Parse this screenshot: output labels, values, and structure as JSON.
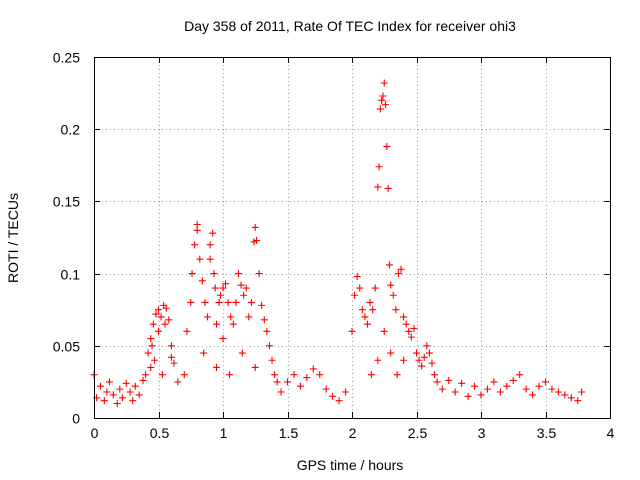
{
  "chart_data": {
    "type": "scatter",
    "title": "Day 358 of 2011, Rate Of TEC Index for receiver ohi3",
    "xlabel": "GPS time / hours",
    "ylabel": "ROTI / TECUs",
    "xlim": [
      0,
      4
    ],
    "ylim": [
      0,
      0.25
    ],
    "xticks": [
      0,
      0.5,
      1,
      1.5,
      2,
      2.5,
      3,
      3.5,
      4
    ],
    "xtick_labels": [
      "0",
      "0.5",
      "1",
      "1.5",
      "2",
      "2.5",
      "3",
      "3.5",
      "4"
    ],
    "yticks": [
      0,
      0.05,
      0.1,
      0.15,
      0.2,
      0.25
    ],
    "ytick_labels": [
      "0",
      "0.05",
      "0.1",
      "0.15",
      "0.2",
      "0.25"
    ],
    "grid": true,
    "marker": "plus",
    "color": "#ff0000",
    "series": [
      {
        "name": "ROTI",
        "points": [
          [
            0.0,
            0.03
          ],
          [
            0.02,
            0.014
          ],
          [
            0.05,
            0.022
          ],
          [
            0.08,
            0.012
          ],
          [
            0.1,
            0.018
          ],
          [
            0.12,
            0.025
          ],
          [
            0.15,
            0.016
          ],
          [
            0.18,
            0.01
          ],
          [
            0.2,
            0.02
          ],
          [
            0.22,
            0.014
          ],
          [
            0.25,
            0.024
          ],
          [
            0.28,
            0.018
          ],
          [
            0.3,
            0.012
          ],
          [
            0.32,
            0.022
          ],
          [
            0.35,
            0.016
          ],
          [
            0.38,
            0.026
          ],
          [
            0.4,
            0.03
          ],
          [
            0.42,
            0.045
          ],
          [
            0.44,
            0.055
          ],
          [
            0.46,
            0.065
          ],
          [
            0.48,
            0.072
          ],
          [
            0.5,
            0.075
          ],
          [
            0.52,
            0.07
          ],
          [
            0.54,
            0.078
          ],
          [
            0.56,
            0.076
          ],
          [
            0.58,
            0.068
          ],
          [
            0.6,
            0.05
          ],
          [
            0.62,
            0.038
          ],
          [
            0.45,
            0.05
          ],
          [
            0.5,
            0.06
          ],
          [
            0.55,
            0.065
          ],
          [
            0.47,
            0.04
          ],
          [
            0.53,
            0.03
          ],
          [
            0.44,
            0.035
          ],
          [
            0.6,
            0.042
          ],
          [
            0.65,
            0.025
          ],
          [
            0.7,
            0.03
          ],
          [
            0.72,
            0.06
          ],
          [
            0.75,
            0.08
          ],
          [
            0.76,
            0.1
          ],
          [
            0.78,
            0.12
          ],
          [
            0.8,
            0.13
          ],
          [
            0.8,
            0.134
          ],
          [
            0.82,
            0.11
          ],
          [
            0.84,
            0.095
          ],
          [
            0.86,
            0.08
          ],
          [
            0.88,
            0.07
          ],
          [
            0.9,
            0.12
          ],
          [
            0.9,
            0.11
          ],
          [
            0.92,
            0.128
          ],
          [
            0.93,
            0.1
          ],
          [
            0.94,
            0.09
          ],
          [
            0.95,
            0.065
          ],
          [
            0.97,
            0.08
          ],
          [
            0.98,
            0.085
          ],
          [
            1.0,
            0.09
          ],
          [
            1.02,
            0.093
          ],
          [
            1.04,
            0.08
          ],
          [
            1.06,
            0.07
          ],
          [
            1.08,
            0.065
          ],
          [
            1.1,
            0.08
          ],
          [
            1.12,
            0.1
          ],
          [
            1.14,
            0.092
          ],
          [
            1.16,
            0.085
          ],
          [
            1.18,
            0.09
          ],
          [
            1.2,
            0.07
          ],
          [
            1.22,
            0.08
          ],
          [
            1.24,
            0.122
          ],
          [
            1.25,
            0.132
          ],
          [
            1.26,
            0.123
          ],
          [
            1.28,
            0.1
          ],
          [
            1.3,
            0.078
          ],
          [
            1.32,
            0.068
          ],
          [
            1.34,
            0.06
          ],
          [
            1.36,
            0.05
          ],
          [
            1.38,
            0.04
          ],
          [
            1.4,
            0.03
          ],
          [
            1.42,
            0.025
          ],
          [
            0.85,
            0.045
          ],
          [
            1.0,
            0.055
          ],
          [
            1.05,
            0.03
          ],
          [
            1.15,
            0.045
          ],
          [
            1.25,
            0.035
          ],
          [
            0.95,
            0.035
          ],
          [
            1.45,
            0.018
          ],
          [
            1.5,
            0.025
          ],
          [
            1.55,
            0.03
          ],
          [
            1.6,
            0.022
          ],
          [
            1.65,
            0.028
          ],
          [
            1.7,
            0.034
          ],
          [
            1.75,
            0.03
          ],
          [
            1.8,
            0.02
          ],
          [
            1.85,
            0.015
          ],
          [
            1.9,
            0.012
          ],
          [
            1.95,
            0.018
          ],
          [
            2.0,
            0.06
          ],
          [
            2.02,
            0.085
          ],
          [
            2.04,
            0.098
          ],
          [
            2.06,
            0.09
          ],
          [
            2.08,
            0.075
          ],
          [
            2.1,
            0.07
          ],
          [
            2.12,
            0.065
          ],
          [
            2.14,
            0.08
          ],
          [
            2.16,
            0.075
          ],
          [
            2.18,
            0.09
          ],
          [
            2.2,
            0.16
          ],
          [
            2.21,
            0.174
          ],
          [
            2.22,
            0.214
          ],
          [
            2.23,
            0.22
          ],
          [
            2.24,
            0.223
          ],
          [
            2.25,
            0.232
          ],
          [
            2.26,
            0.217
          ],
          [
            2.27,
            0.188
          ],
          [
            2.28,
            0.159
          ],
          [
            2.29,
            0.106
          ],
          [
            2.3,
            0.092
          ],
          [
            2.32,
            0.085
          ],
          [
            2.34,
            0.075
          ],
          [
            2.36,
            0.1
          ],
          [
            2.38,
            0.103
          ],
          [
            2.4,
            0.07
          ],
          [
            2.42,
            0.065
          ],
          [
            2.44,
            0.06
          ],
          [
            2.46,
            0.056
          ],
          [
            2.48,
            0.062
          ],
          [
            2.5,
            0.045
          ],
          [
            2.52,
            0.04
          ],
          [
            2.54,
            0.036
          ],
          [
            2.56,
            0.042
          ],
          [
            2.58,
            0.05
          ],
          [
            2.6,
            0.045
          ],
          [
            2.62,
            0.038
          ],
          [
            2.64,
            0.03
          ],
          [
            2.66,
            0.025
          ],
          [
            2.25,
            0.06
          ],
          [
            2.3,
            0.045
          ],
          [
            2.35,
            0.03
          ],
          [
            2.4,
            0.04
          ],
          [
            2.2,
            0.04
          ],
          [
            2.15,
            0.03
          ],
          [
            2.7,
            0.02
          ],
          [
            2.75,
            0.026
          ],
          [
            2.8,
            0.018
          ],
          [
            2.85,
            0.024
          ],
          [
            2.9,
            0.015
          ],
          [
            2.95,
            0.022
          ],
          [
            3.0,
            0.016
          ],
          [
            3.05,
            0.02
          ],
          [
            3.1,
            0.025
          ],
          [
            3.15,
            0.018
          ],
          [
            3.2,
            0.022
          ],
          [
            3.25,
            0.026
          ],
          [
            3.3,
            0.03
          ],
          [
            3.35,
            0.02
          ],
          [
            3.4,
            0.016
          ],
          [
            3.45,
            0.022
          ],
          [
            3.5,
            0.025
          ],
          [
            3.55,
            0.02
          ],
          [
            3.6,
            0.018
          ],
          [
            3.65,
            0.016
          ],
          [
            3.7,
            0.014
          ],
          [
            3.75,
            0.012
          ],
          [
            3.78,
            0.018
          ]
        ]
      }
    ]
  }
}
